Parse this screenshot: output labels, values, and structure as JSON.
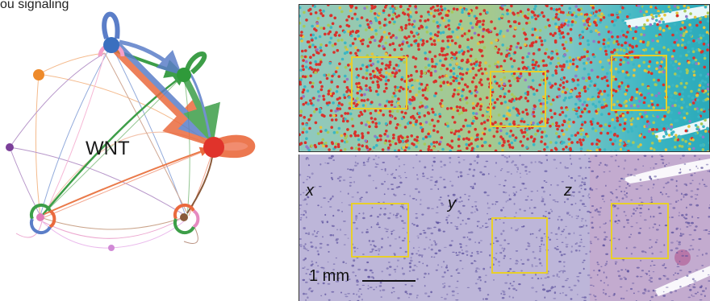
{
  "header": {
    "partial_caption": "ou signaling"
  },
  "network": {
    "title": "WNT",
    "nodes": [
      {
        "id": "n1",
        "color": "#3a6fbf"
      },
      {
        "id": "n2",
        "color": "#2f9a3a"
      },
      {
        "id": "n3",
        "color": "#e0332b"
      },
      {
        "id": "n4",
        "color": "#ee8a2a"
      },
      {
        "id": "n5",
        "color": "#7b3f99"
      },
      {
        "id": "n6",
        "color": "#e27bb8"
      },
      {
        "id": "n7",
        "color": "#8a5a3a"
      },
      {
        "id": "n8",
        "color": "#d18ad6"
      },
      {
        "id": "n9",
        "color": "#d8d8d8"
      }
    ]
  },
  "spatial_panel": {
    "colors": {
      "spots": "#d9312b",
      "tissue_a": "#3bb6c4",
      "tissue_b": "#a7c95a",
      "tissue_c": "#e3c43e",
      "tissue_d": "#8f7ac8"
    },
    "rois": [
      "roi-x",
      "roi-y",
      "roi-z"
    ]
  },
  "he_panel": {
    "labels": {
      "x": "x",
      "y": "y",
      "z": "z"
    },
    "scale_bar": "1 mm",
    "colors": {
      "stain": "#b8b2d8",
      "nuclei": "#5a4f9c",
      "roi": "#e8cf2a"
    }
  }
}
